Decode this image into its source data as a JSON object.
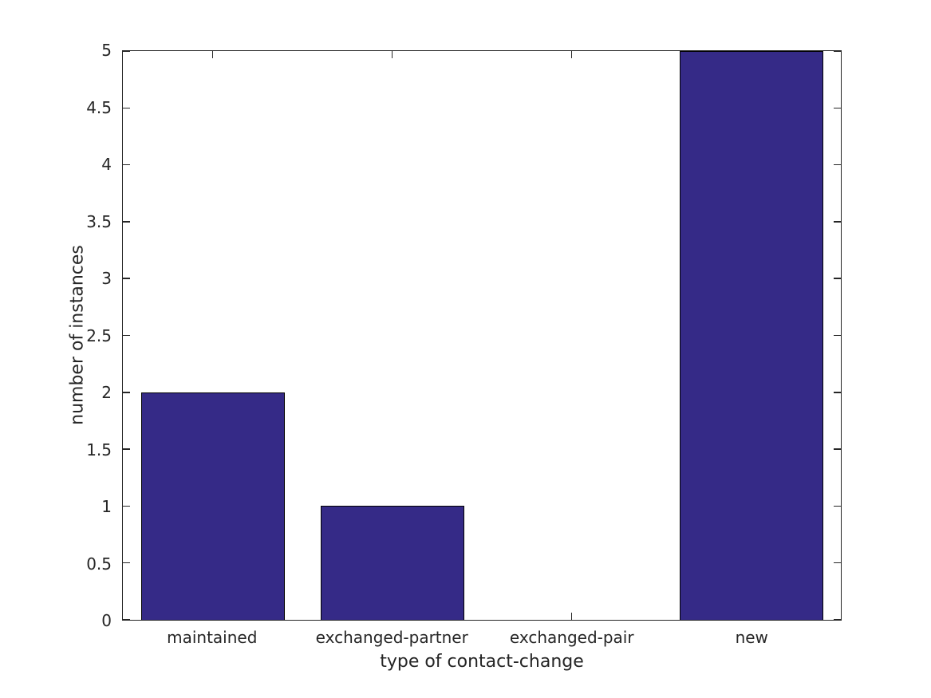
{
  "figure": {
    "background": "#FFFFFF"
  },
  "chart_data": {
    "type": "bar",
    "categories": [
      "maintained",
      "exchanged-partner",
      "exchanged-pair",
      "new"
    ],
    "values": [
      2,
      1,
      0,
      5
    ],
    "title": "",
    "xlabel": "type of contact-change",
    "ylabel": "number of instances",
    "ylim": [
      0,
      5
    ],
    "ytick_step": 0.5,
    "ytick_labels": [
      "0",
      "0.5",
      "1",
      "1.5",
      "2",
      "2.5",
      "3",
      "3.5",
      "4",
      "4.5",
      "5"
    ],
    "bar_width_fraction": 0.8,
    "grid": false,
    "legend": "none",
    "axes_box": true,
    "tick_direction": "in",
    "colors": {
      "bar_fill": "#352A87",
      "bar_edge": "#000000",
      "axis": "#262626",
      "text": "#262626",
      "background": "#FFFFFF"
    }
  }
}
